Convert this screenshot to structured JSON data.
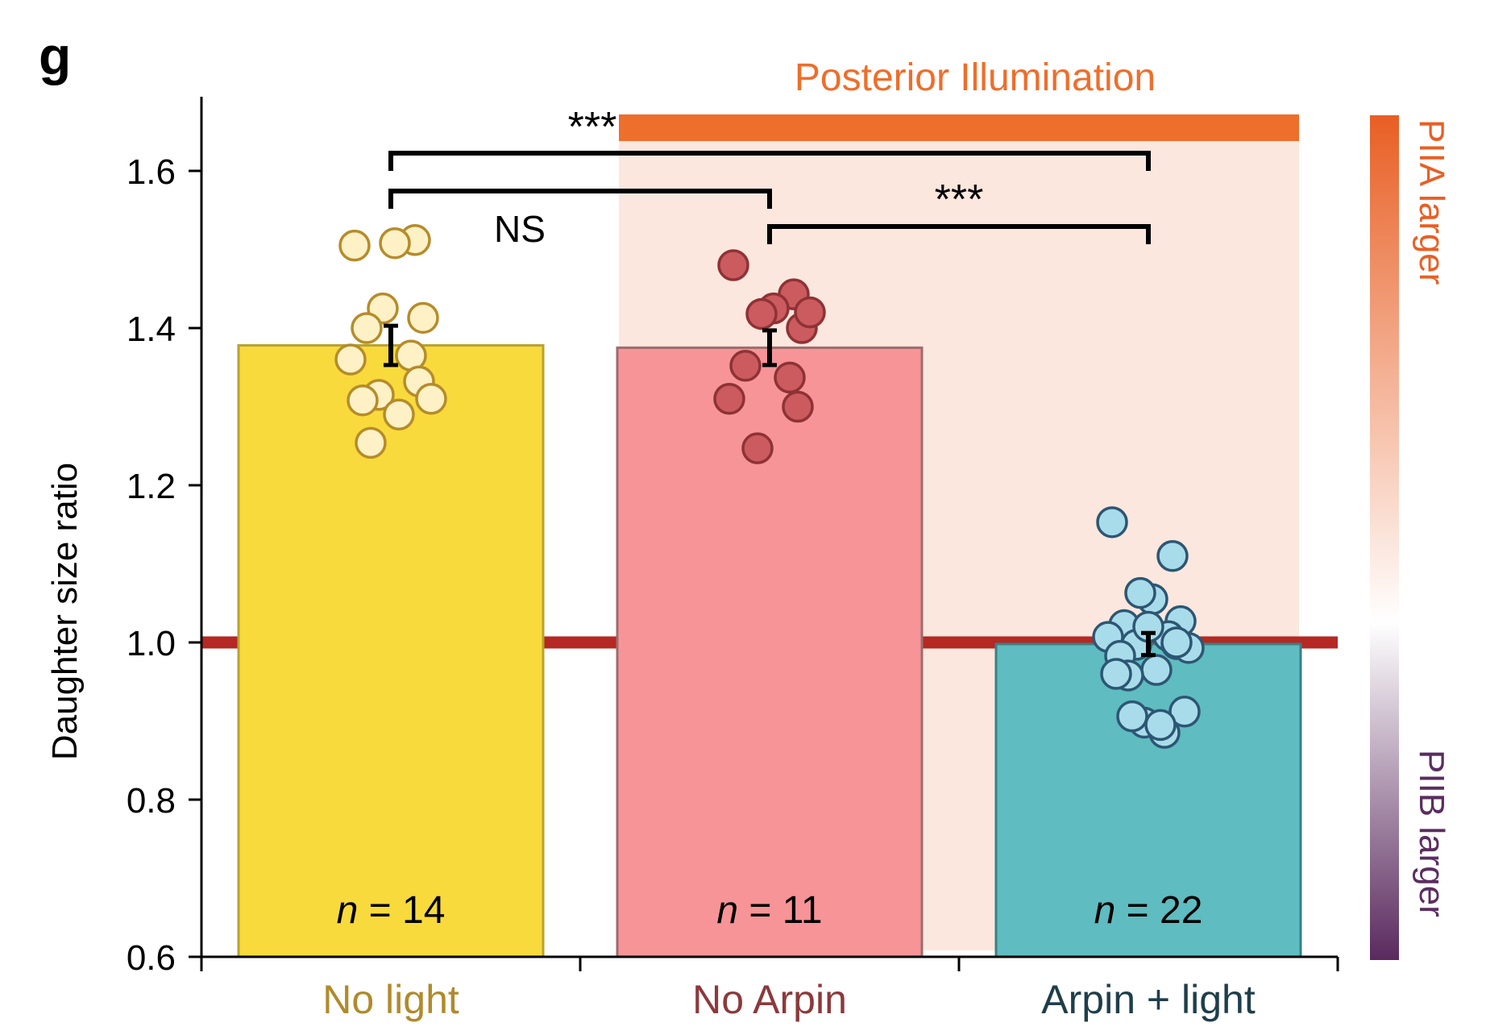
{
  "panel_label": "g",
  "colors": {
    "no_light_bar": "#F9DA3C",
    "no_light_bar_stroke": "#B8A233",
    "no_light_dot": "#FEF1C6",
    "no_light_dot_stroke": "#B58C2A",
    "no_light_text": "#B08A2C",
    "no_arpin_bar": "#F69497",
    "no_arpin_bar_stroke": "#9E6B6C",
    "no_arpin_dot": "#CB5B5E",
    "no_arpin_dot_stroke": "#8E3235",
    "no_arpin_text": "#8B3A3C",
    "arpin_bar": "#5FBCC0",
    "arpin_bar_stroke": "#3C7F83",
    "arpin_dot": "#A9DCEA",
    "arpin_dot_stroke": "#2D5673",
    "arpin_text": "#1F3E4A",
    "illumination": "#EE6E2B",
    "illumination_region": "#FCE7DE",
    "reference_line": "#B52823",
    "colorbar_top": "#E85F24",
    "colorbar_mid": "#FFFFFF",
    "colorbar_bottom": "#5A2A5E",
    "piib_text": "#5B2D60"
  },
  "chart_data": {
    "type": "bar",
    "categories": [
      "No light",
      "No Arpin",
      "Arpin + light"
    ],
    "values": [
      1.378,
      1.375,
      0.998
    ],
    "errors": [
      0.025,
      0.022,
      0.014
    ],
    "sample_sizes": [
      {
        "label": "n",
        "value": "= 14"
      },
      {
        "label": "n",
        "value": "= 11"
      },
      {
        "label": "n",
        "value": "= 22"
      }
    ],
    "points": [
      [
        1.505,
        1.512,
        1.508,
        1.425,
        1.413,
        1.4,
        1.365,
        1.36,
        1.332,
        1.315,
        1.31,
        1.308,
        1.29,
        1.254
      ],
      [
        1.48,
        1.443,
        1.425,
        1.418,
        1.4,
        1.352,
        1.337,
        1.31,
        1.3,
        1.247,
        1.42
      ],
      [
        1.153,
        1.11,
        1.055,
        1.063,
        1.027,
        1.022,
        1.008,
        1.007,
        0.998,
        0.997,
        0.993,
        0.983,
        0.965,
        0.958,
        0.912,
        0.898,
        0.885,
        0.96,
        1.02,
        0.895,
        0.906,
        1.0
      ]
    ],
    "ylabel": "Daughter size ratio",
    "ylim": [
      0.6,
      1.7
    ],
    "yticks": [
      "0.6",
      "0.8",
      "1.0",
      "1.2",
      "1.4",
      "1.6"
    ],
    "reference_line": 1.0,
    "illumination_label": "Posterior Illumination",
    "significance": [
      {
        "from": 0,
        "to": 2,
        "label": "***"
      },
      {
        "from": 0,
        "to": 1,
        "label": "NS"
      },
      {
        "from": 1,
        "to": 2,
        "label": "***"
      }
    ],
    "colorbar": {
      "top_label": "PIIA larger",
      "bottom_label": "PIIB larger"
    }
  }
}
